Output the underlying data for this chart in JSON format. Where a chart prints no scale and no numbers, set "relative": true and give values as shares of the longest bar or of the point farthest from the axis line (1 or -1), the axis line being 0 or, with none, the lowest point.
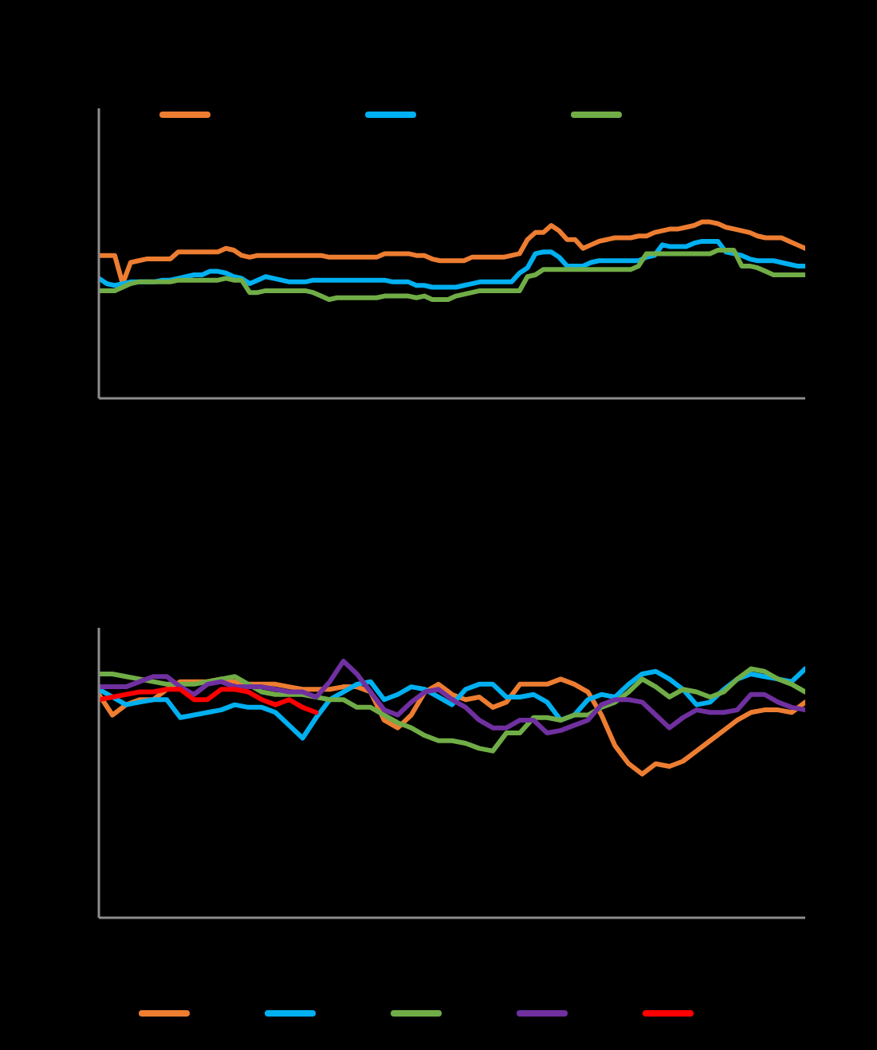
{
  "chart_data": [
    {
      "type": "line",
      "relative": true,
      "categories": [
        null,
        null,
        null,
        null,
        null,
        null,
        null,
        null,
        null,
        null,
        null,
        null,
        null,
        null,
        null,
        null,
        null,
        null,
        null,
        null,
        null,
        null,
        null,
        null,
        null,
        null,
        null,
        null,
        null,
        null,
        null,
        null,
        null,
        null,
        null,
        null,
        null,
        null,
        null,
        null,
        null,
        null,
        null,
        null,
        null,
        null,
        null,
        null,
        null,
        null,
        null,
        null,
        null,
        null,
        null,
        null,
        null,
        null,
        null,
        null,
        null,
        null,
        null,
        null,
        null,
        null,
        null,
        null,
        null,
        null,
        null,
        null,
        null,
        null,
        null,
        null,
        null,
        null,
        null,
        null,
        null,
        null,
        null,
        null,
        null,
        null,
        null,
        null,
        null,
        null
      ],
      "series": [
        {
          "color": "#ed7d31",
          "values": [
            0.81,
            0.81,
            0.81,
            0.65,
            0.77,
            0.78,
            0.79,
            0.79,
            0.79,
            0.79,
            0.83,
            0.83,
            0.83,
            0.83,
            0.83,
            0.83,
            0.85,
            0.84,
            0.81,
            0.8,
            0.81,
            0.81,
            0.81,
            0.81,
            0.81,
            0.81,
            0.81,
            0.81,
            0.81,
            0.8,
            0.8,
            0.8,
            0.8,
            0.8,
            0.8,
            0.8,
            0.82,
            0.82,
            0.82,
            0.82,
            0.81,
            0.81,
            0.79,
            0.78,
            0.78,
            0.78,
            0.78,
            0.8,
            0.8,
            0.8,
            0.8,
            0.8,
            0.81,
            0.82,
            0.9,
            0.94,
            0.94,
            0.98,
            0.95,
            0.9,
            0.9,
            0.85,
            0.87,
            0.89,
            0.9,
            0.91,
            0.91,
            0.91,
            0.92,
            0.92,
            0.94,
            0.95,
            0.96,
            0.96,
            0.97,
            0.98,
            1,
            1,
            0.99,
            0.97,
            0.96,
            0.95,
            0.94,
            0.92,
            0.91,
            0.91,
            0.91,
            0.89,
            0.87,
            0.85
          ]
        },
        {
          "color": "#00b0f0",
          "values": [
            0.68,
            0.65,
            0.64,
            0.65,
            0.66,
            0.66,
            0.66,
            0.66,
            0.67,
            0.67,
            0.68,
            0.69,
            0.7,
            0.7,
            0.72,
            0.72,
            0.71,
            0.69,
            0.68,
            0.65,
            0.67,
            0.69,
            0.68,
            0.67,
            0.66,
            0.66,
            0.66,
            0.67,
            0.67,
            0.67,
            0.67,
            0.67,
            0.67,
            0.67,
            0.67,
            0.67,
            0.67,
            0.66,
            0.66,
            0.66,
            0.64,
            0.64,
            0.63,
            0.63,
            0.63,
            0.63,
            0.64,
            0.65,
            0.66,
            0.66,
            0.66,
            0.66,
            0.66,
            0.71,
            0.74,
            0.82,
            0.83,
            0.83,
            0.8,
            0.75,
            0.75,
            0.75,
            0.77,
            0.78,
            0.78,
            0.78,
            0.78,
            0.78,
            0.78,
            0.8,
            0.81,
            0.87,
            0.86,
            0.86,
            0.86,
            0.88,
            0.89,
            0.89,
            0.89,
            0.83,
            0.82,
            0.81,
            0.79,
            0.78,
            0.78,
            0.78,
            0.77,
            0.76,
            0.75,
            0.75
          ]
        },
        {
          "color": "#70ad47",
          "values": [
            0.61,
            0.61,
            0.61,
            0.63,
            0.65,
            0.66,
            0.66,
            0.66,
            0.66,
            0.66,
            0.67,
            0.67,
            0.67,
            0.67,
            0.67,
            0.67,
            0.68,
            0.67,
            0.67,
            0.6,
            0.6,
            0.61,
            0.61,
            0.61,
            0.61,
            0.61,
            0.61,
            0.6,
            0.58,
            0.56,
            0.57,
            0.57,
            0.57,
            0.57,
            0.57,
            0.57,
            0.58,
            0.58,
            0.58,
            0.58,
            0.57,
            0.58,
            0.56,
            0.56,
            0.56,
            0.58,
            0.59,
            0.6,
            0.61,
            0.61,
            0.61,
            0.61,
            0.61,
            0.61,
            0.69,
            0.7,
            0.73,
            0.73,
            0.73,
            0.73,
            0.73,
            0.73,
            0.73,
            0.73,
            0.73,
            0.73,
            0.73,
            0.73,
            0.75,
            0.82,
            0.82,
            0.82,
            0.82,
            0.82,
            0.82,
            0.82,
            0.82,
            0.82,
            0.84,
            0.84,
            0.84,
            0.75,
            0.75,
            0.74,
            0.72,
            0.7,
            0.7,
            0.7,
            0.7,
            0.7
          ]
        }
      ]
    },
    {
      "type": "line",
      "relative": true,
      "categories": [
        null,
        null,
        null,
        null,
        null,
        null,
        null,
        null,
        null,
        null,
        null,
        null,
        null,
        null,
        null,
        null,
        null,
        null,
        null,
        null,
        null,
        null,
        null,
        null,
        null,
        null,
        null,
        null,
        null,
        null,
        null,
        null,
        null,
        null,
        null,
        null,
        null,
        null,
        null,
        null,
        null,
        null,
        null,
        null,
        null,
        null,
        null,
        null,
        null,
        null,
        null,
        null,
        null
      ],
      "series": [
        {
          "color": "#ed7d31",
          "values": [
            0.87,
            0.79,
            0.83,
            0.85,
            0.85,
            0.89,
            0.92,
            0.92,
            0.92,
            0.93,
            0.92,
            0.91,
            0.91,
            0.91,
            0.9,
            0.89,
            0.89,
            0.89,
            0.9,
            0.9,
            0.88,
            0.77,
            0.74,
            0.79,
            0.88,
            0.91,
            0.87,
            0.85,
            0.86,
            0.82,
            0.84,
            0.91,
            0.91,
            0.91,
            0.93,
            0.91,
            0.88,
            0.79,
            0.67,
            0.6,
            0.56,
            0.6,
            0.59,
            0.61,
            0.65,
            0.69,
            0.73,
            0.77,
            0.8,
            0.81,
            0.81,
            0.8,
            0.84
          ]
        },
        {
          "color": "#00b0f0",
          "values": [
            0.89,
            0.86,
            0.83,
            0.84,
            0.85,
            0.85,
            0.78,
            0.79,
            0.8,
            0.81,
            0.83,
            0.82,
            0.82,
            0.8,
            0.75,
            0.7,
            0.78,
            0.85,
            0.88,
            0.91,
            0.92,
            0.85,
            0.87,
            0.9,
            0.89,
            0.86,
            0.83,
            0.89,
            0.91,
            0.91,
            0.86,
            0.86,
            0.87,
            0.84,
            0.77,
            0.79,
            0.85,
            0.87,
            0.86,
            0.91,
            0.95,
            0.96,
            0.93,
            0.89,
            0.83,
            0.84,
            0.89,
            0.93,
            0.95,
            0.94,
            0.93,
            0.92,
            0.97
          ]
        },
        {
          "color": "#70ad47",
          "values": [
            0.95,
            0.95,
            0.94,
            0.93,
            0.92,
            0.91,
            0.91,
            0.91,
            0.92,
            0.93,
            0.94,
            0.91,
            0.88,
            0.87,
            0.87,
            0.87,
            0.86,
            0.85,
            0.85,
            0.82,
            0.82,
            0.79,
            0.76,
            0.74,
            0.71,
            0.69,
            0.69,
            0.68,
            0.66,
            0.65,
            0.72,
            0.72,
            0.78,
            0.78,
            0.77,
            0.79,
            0.79,
            0.82,
            0.84,
            0.88,
            0.93,
            0.9,
            0.86,
            0.89,
            0.88,
            0.86,
            0.88,
            0.93,
            0.97,
            0.96,
            0.93,
            0.91,
            0.88
          ]
        },
        {
          "color": "#7030a0",
          "values": [
            0.9,
            0.9,
            0.9,
            0.92,
            0.94,
            0.94,
            0.9,
            0.87,
            0.91,
            0.92,
            0.9,
            0.9,
            0.9,
            0.89,
            0.88,
            0.88,
            0.86,
            0.92,
            1,
            0.95,
            0.88,
            0.81,
            0.79,
            0.84,
            0.88,
            0.89,
            0.85,
            0.82,
            0.77,
            0.74,
            0.74,
            0.77,
            0.77,
            0.72,
            0.73,
            0.75,
            0.77,
            0.83,
            0.85,
            0.85,
            0.84,
            0.79,
            0.74,
            0.78,
            0.81,
            0.8,
            0.8,
            0.81,
            0.87,
            0.87,
            0.84,
            0.82,
            0.81
          ]
        },
        {
          "color": "#ff0000",
          "values": [
            0.85,
            0.86,
            0.87,
            0.88,
            0.88,
            0.89,
            0.89,
            0.85,
            0.85,
            0.89,
            0.89,
            0.88,
            0.85,
            0.83,
            0.85,
            0.82,
            0.8,
            null,
            null,
            null,
            null,
            null,
            null,
            null,
            null,
            null,
            null,
            null,
            null,
            null,
            null,
            null,
            null,
            null,
            null,
            null,
            null,
            null,
            null,
            null,
            null,
            null,
            null,
            null,
            null,
            null,
            null,
            null,
            null,
            null,
            null,
            null,
            null
          ]
        }
      ]
    }
  ]
}
